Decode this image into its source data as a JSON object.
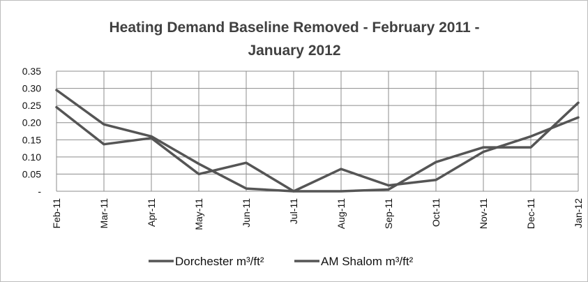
{
  "chart_data": {
    "type": "line",
    "title_line1": "Heating Demand Baseline Removed - February 2011 -",
    "title_line2": "January 2012",
    "categories": [
      "Feb-11",
      "Mar-11",
      "Apr-11",
      "May-11",
      "Jun-11",
      "Jul-11",
      "Aug-11",
      "Sep-11",
      "Oct-11",
      "Nov-11",
      "Dec-11",
      "Jan-12"
    ],
    "y_ticks": [
      {
        "value": 0.35,
        "label": "0.35"
      },
      {
        "value": 0.3,
        "label": "0.30"
      },
      {
        "value": 0.25,
        "label": "0.25"
      },
      {
        "value": 0.2,
        "label": "0.20"
      },
      {
        "value": 0.15,
        "label": "0.15"
      },
      {
        "value": 0.1,
        "label": "0.10"
      },
      {
        "value": 0.05,
        "label": "0.05"
      },
      {
        "value": 0.0,
        "label": "-"
      }
    ],
    "ylim": [
      0,
      0.35
    ],
    "grid": true,
    "legend_position": "bottom",
    "series": [
      {
        "name": "Dorchester m³/ft²",
        "color": "#555555",
        "values": [
          0.295,
          0.195,
          0.16,
          0.08,
          0.008,
          0.0,
          0.0,
          0.005,
          0.085,
          0.128,
          0.128,
          0.258
        ]
      },
      {
        "name": "AM Shalom m³/ft²",
        "color": "#555555",
        "values": [
          0.245,
          0.137,
          0.155,
          0.05,
          0.083,
          0.0,
          0.065,
          0.017,
          0.033,
          0.115,
          0.16,
          0.215
        ]
      }
    ]
  }
}
